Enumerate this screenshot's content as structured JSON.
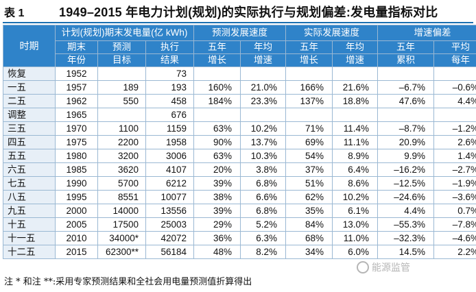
{
  "title": {
    "label": "表 1",
    "text": "1949–2015 年电力计划(规划)的实际执行与规划偏差:发电量指标对比"
  },
  "header": {
    "period": "时期",
    "group_plan": "计划(规划)期末发电量(亿 kWh)",
    "group_pred": "预测发展速度",
    "group_actual": "实际发展速度",
    "group_dev": "增速偏差",
    "c1a": "期末",
    "c1b": "年份",
    "c2a": "预测",
    "c2b": "目标",
    "c3a": "执行",
    "c3b": "结果",
    "c4a": "五年",
    "c4b": "增长",
    "c5a": "年均",
    "c5b": "增速",
    "c6a": "五年",
    "c6b": "增长",
    "c7a": "年均",
    "c7b": "增速",
    "c8a": "五年",
    "c8b": "累积",
    "c9a": "平均",
    "c9b": "每年"
  },
  "rows": [
    {
      "period": "恢复",
      "year": "1952",
      "target": "",
      "result": "73",
      "pred5": "",
      "predAvg": "",
      "act5": "",
      "actAvg": "",
      "dev5": "",
      "devAvg": ""
    },
    {
      "period": "一五",
      "year": "1957",
      "target": "189",
      "result": "193",
      "pred5": "160%",
      "predAvg": "21.0%",
      "act5": "166%",
      "actAvg": "21.6%",
      "dev5": "–6.7%",
      "devAvg": "–0.6%"
    },
    {
      "period": "二五",
      "year": "1962",
      "target": "550",
      "result": "458",
      "pred5": "184%",
      "predAvg": "23.3%",
      "act5": "137%",
      "actAvg": "18.8%",
      "dev5": "47.6%",
      "devAvg": "4.4%"
    },
    {
      "period": "调整",
      "year": "1965",
      "target": "",
      "result": "676",
      "pred5": "",
      "predAvg": "",
      "act5": "",
      "actAvg": "",
      "dev5": "",
      "devAvg": ""
    },
    {
      "period": "三五",
      "year": "1970",
      "target": "1100",
      "result": "1159",
      "pred5": "63%",
      "predAvg": "10.2%",
      "act5": "71%",
      "actAvg": "11.4%",
      "dev5": "–8.7%",
      "devAvg": "–1.2%"
    },
    {
      "period": "四五",
      "year": "1975",
      "target": "2200",
      "result": "1958",
      "pred5": "90%",
      "predAvg": "13.7%",
      "act5": "69%",
      "actAvg": "11.1%",
      "dev5": "20.9%",
      "devAvg": "2.6%"
    },
    {
      "period": "五五",
      "year": "1980",
      "target": "3200",
      "result": "3006",
      "pred5": "63%",
      "predAvg": "10.3%",
      "act5": "54%",
      "actAvg": "8.9%",
      "dev5": "9.9%",
      "devAvg": "1.4%"
    },
    {
      "period": "六五",
      "year": "1985",
      "target": "3620",
      "result": "4107",
      "pred5": "20%",
      "predAvg": "3.8%",
      "act5": "37%",
      "actAvg": "6.4%",
      "dev5": "–16.2%",
      "devAvg": "–2.7%"
    },
    {
      "period": "七五",
      "year": "1990",
      "target": "5700",
      "result": "6212",
      "pred5": "39%",
      "predAvg": "6.8%",
      "act5": "51%",
      "actAvg": "8.6%",
      "dev5": "–12.5%",
      "devAvg": "–1.9%"
    },
    {
      "period": "八五",
      "year": "1995",
      "target": "8551",
      "result": "10077",
      "pred5": "38%",
      "predAvg": "6.6%",
      "act5": "62%",
      "actAvg": "10.2%",
      "dev5": "–24.6%",
      "devAvg": "–3.6%"
    },
    {
      "period": "九五",
      "year": "2000",
      "target": "14000",
      "result": "13556",
      "pred5": "39%",
      "predAvg": "6.8%",
      "act5": "35%",
      "actAvg": "6.1%",
      "dev5": "4.4%",
      "devAvg": "0.7%"
    },
    {
      "period": "十五",
      "year": "2005",
      "target": "17500",
      "result": "25003",
      "pred5": "29%",
      "predAvg": "5.2%",
      "act5": "84%",
      "actAvg": "13.0%",
      "dev5": "–55.3%",
      "devAvg": "–7.8%"
    },
    {
      "period": "十一五",
      "year": "2010",
      "target": "34000*",
      "result": "42072",
      "pred5": "36%",
      "predAvg": "6.3%",
      "act5": "68%",
      "actAvg": "11.0%",
      "dev5": "–32.3%",
      "devAvg": "–4.6%"
    },
    {
      "period": "十二五",
      "year": "2015",
      "target": "62300**",
      "result": "56184",
      "pred5": "48%",
      "predAvg": "8.2%",
      "act5": "34%",
      "actAvg": "6.0%",
      "dev5": "14.5%",
      "devAvg": "2.2%"
    }
  ],
  "note": "注 * 和注 **:采用专家预测结果和全社会用电量预测值折算得出",
  "watermark": "能源监管"
}
